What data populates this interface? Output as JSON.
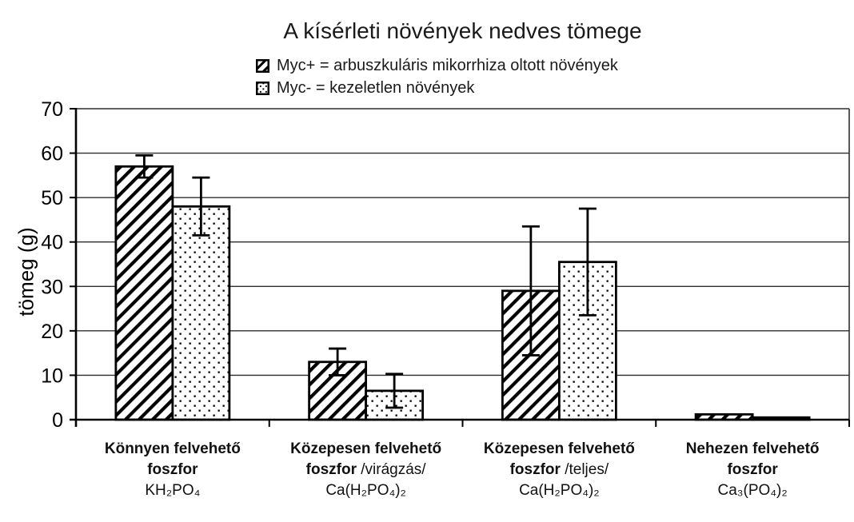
{
  "title": "A kísérleti növények nedves tömege",
  "legend": {
    "items": [
      {
        "label": "Myc+ = arbuszkuláris mikorrhiza oltott növények",
        "pattern": "diagonal-hatch",
        "icon": "hatched-square-icon"
      },
      {
        "label": "Myc- = kezeletlen növények",
        "pattern": "dots",
        "icon": "dotted-square-icon"
      }
    ]
  },
  "chart_data": {
    "type": "bar",
    "title": "A kísérleti növények nedves tömege",
    "xlabel": "",
    "ylabel": "tömeg (g)",
    "ylim": [
      0,
      70
    ],
    "yticks": [
      0,
      10,
      20,
      30,
      40,
      50,
      60,
      70
    ],
    "grid": true,
    "legend_position": "top",
    "categories": [
      {
        "line1": "Könnyen felvehető",
        "line2_bold": "foszfor",
        "line2_regular": "",
        "formula": "KH₂PO₄"
      },
      {
        "line1": "Közepesen felvehető",
        "line2_bold": "foszfor",
        "line2_regular": " /virágzás/",
        "formula": "Ca(H₂PO₄)₂"
      },
      {
        "line1": "Közepesen felvehető",
        "line2_bold": "foszfor",
        "line2_regular": " /teljes/",
        "formula": "Ca(H₂PO₄)₂"
      },
      {
        "line1": "Nehezen felvehető",
        "line2_bold": "foszfor",
        "line2_regular": "",
        "formula": "Ca₃(PO₄)₂"
      }
    ],
    "series": [
      {
        "name": "Myc+",
        "pattern": "diagonal-hatch",
        "values": [
          57,
          13,
          29,
          1.2
        ],
        "errors": [
          2.5,
          3,
          14.5,
          0
        ]
      },
      {
        "name": "Myc-",
        "pattern": "dots",
        "values": [
          48,
          6.5,
          35.5,
          0.5
        ],
        "errors": [
          6.5,
          3.8,
          12,
          0
        ]
      }
    ]
  },
  "colors": {
    "ink": "#000000",
    "grid": "#2e2e2e",
    "text": "#1a1a1a",
    "background": "#ffffff"
  }
}
